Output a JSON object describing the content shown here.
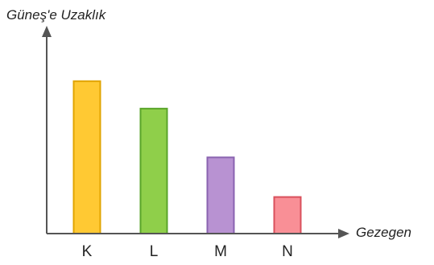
{
  "chart_data": {
    "type": "bar",
    "ylabel": "Güneş'e Uzaklık",
    "xlabel": "Gezegen",
    "categories": [
      "K",
      "L",
      "M",
      "N"
    ],
    "values": [
      100,
      82,
      50,
      24
    ],
    "ylim": [
      0,
      130
    ],
    "grid": false,
    "legend": "none",
    "colors": [
      "#ffc933",
      "#8fcf4a",
      "#b892d2",
      "#f98f96"
    ],
    "edge_colors": [
      "#e0a400",
      "#5aa52a",
      "#8a63b0",
      "#d9505c"
    ]
  }
}
